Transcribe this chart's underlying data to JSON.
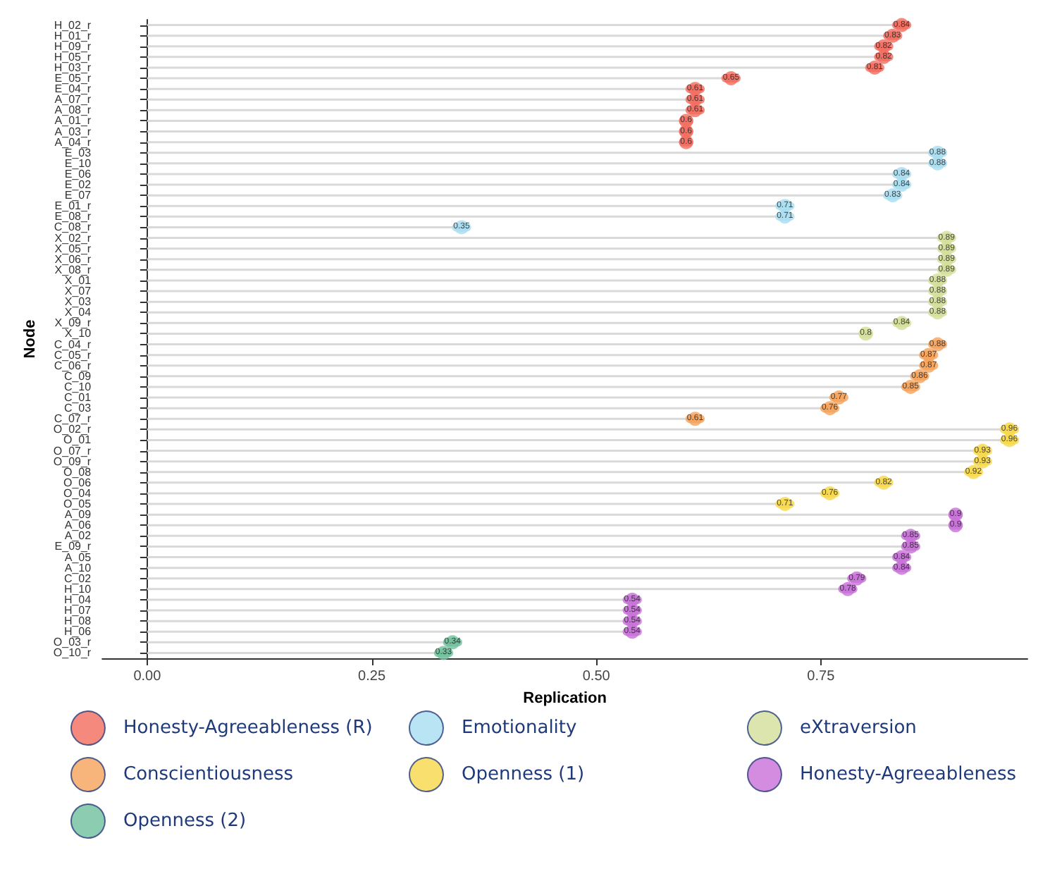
{
  "chart_data": {
    "type": "lollipop",
    "orientation": "horizontal",
    "xlabel": "Replication",
    "ylabel": "Node",
    "categories": [
      "H_02_r",
      "H_01_r",
      "H_09_r",
      "H_05_r",
      "H_03_r",
      "E_05_r",
      "E_04_r",
      "A_07_r",
      "A_08_r",
      "A_01_r",
      "A_03_r",
      "A_04_r",
      "E_03",
      "E_10",
      "E_06",
      "E_02",
      "E_07",
      "E_01_r",
      "E_08_r",
      "C_08_r",
      "X_02_r",
      "X_05_r",
      "X_06_r",
      "X_08_r",
      "X_01",
      "X_07",
      "X_03",
      "X_04",
      "X_09_r",
      "X_10",
      "C_04_r",
      "C_05_r",
      "C_06_r",
      "C_09",
      "C_10",
      "C_01",
      "C_03",
      "C_07_r",
      "O_02_r",
      "O_01",
      "O_07_r",
      "O_09_r",
      "O_08",
      "O_06",
      "O_04",
      "O_05",
      "A_09",
      "A_06",
      "A_02",
      "E_09_r",
      "A_05",
      "A_10",
      "C_02",
      "H_10",
      "H_04",
      "H_07",
      "H_08",
      "H_06",
      "O_03_r",
      "O_10_r"
    ],
    "series": [
      {
        "name": "Honesty-Agreeableness (R)",
        "color": "#f26b5e",
        "values": [
          0.84,
          0.83,
          0.82,
          0.82,
          0.81,
          0.65,
          0.61,
          0.61,
          0.61,
          0.6,
          0.6,
          0.6,
          null,
          null,
          null,
          null,
          null,
          null,
          null,
          null,
          null,
          null,
          null,
          null,
          null,
          null,
          null,
          null,
          null,
          null,
          null,
          null,
          null,
          null,
          null,
          null,
          null,
          null,
          null,
          null,
          null,
          null,
          null,
          null,
          null,
          null,
          null,
          null,
          null,
          null,
          null,
          null,
          null,
          null,
          null,
          null,
          null,
          null,
          null,
          null
        ]
      },
      {
        "name": "Emotionality",
        "color": "#a8ddf0",
        "values": [
          null,
          null,
          null,
          null,
          null,
          null,
          null,
          null,
          null,
          null,
          null,
          null,
          0.88,
          0.88,
          0.84,
          0.84,
          0.83,
          0.71,
          0.71,
          0.35,
          null,
          null,
          null,
          null,
          null,
          null,
          null,
          null,
          null,
          null,
          null,
          null,
          null,
          null,
          null,
          null,
          null,
          null,
          null,
          null,
          null,
          null,
          null,
          null,
          null,
          null,
          null,
          null,
          null,
          null,
          null,
          null,
          null,
          null,
          null,
          null,
          null,
          null,
          null,
          null
        ]
      },
      {
        "name": "eXtraversion",
        "color": "#d3df9a",
        "values": [
          null,
          null,
          null,
          null,
          null,
          null,
          null,
          null,
          null,
          null,
          null,
          null,
          null,
          null,
          null,
          null,
          null,
          null,
          null,
          null,
          0.89,
          0.89,
          0.89,
          0.89,
          0.88,
          0.88,
          0.88,
          0.88,
          0.84,
          0.8,
          null,
          null,
          null,
          null,
          null,
          null,
          null,
          null,
          null,
          null,
          null,
          null,
          null,
          null,
          null,
          null,
          null,
          null,
          null,
          null,
          null,
          null,
          null,
          null,
          null,
          null,
          null,
          null,
          null,
          null
        ]
      },
      {
        "name": "Conscientiousness",
        "color": "#f5a25a",
        "values": [
          null,
          null,
          null,
          null,
          null,
          null,
          null,
          null,
          null,
          null,
          null,
          null,
          null,
          null,
          null,
          null,
          null,
          null,
          null,
          null,
          null,
          null,
          null,
          null,
          null,
          null,
          null,
          null,
          null,
          null,
          0.88,
          0.87,
          0.87,
          0.86,
          0.85,
          0.77,
          0.76,
          0.61,
          null,
          null,
          null,
          null,
          null,
          null,
          null,
          null,
          null,
          null,
          null,
          null,
          null,
          null,
          null,
          null,
          null,
          null,
          null,
          null,
          null,
          null
        ]
      },
      {
        "name": "Openness (1)",
        "color": "#f7d84a",
        "values": [
          null,
          null,
          null,
          null,
          null,
          null,
          null,
          null,
          null,
          null,
          null,
          null,
          null,
          null,
          null,
          null,
          null,
          null,
          null,
          null,
          null,
          null,
          null,
          null,
          null,
          null,
          null,
          null,
          null,
          null,
          null,
          null,
          null,
          null,
          null,
          null,
          null,
          null,
          0.96,
          0.96,
          0.93,
          0.93,
          0.92,
          0.82,
          0.76,
          0.71,
          null,
          null,
          null,
          null,
          null,
          null,
          null,
          null,
          null,
          null,
          null,
          null,
          null,
          null
        ]
      },
      {
        "name": "Honesty-Agreeableness",
        "color": "#c86fd8",
        "values": [
          null,
          null,
          null,
          null,
          null,
          null,
          null,
          null,
          null,
          null,
          null,
          null,
          null,
          null,
          null,
          null,
          null,
          null,
          null,
          null,
          null,
          null,
          null,
          null,
          null,
          null,
          null,
          null,
          null,
          null,
          null,
          null,
          null,
          null,
          null,
          null,
          null,
          null,
          null,
          null,
          null,
          null,
          null,
          null,
          null,
          null,
          0.9,
          0.9,
          0.85,
          0.85,
          0.84,
          0.84,
          0.79,
          0.78,
          0.54,
          0.54,
          0.54,
          0.54,
          null,
          null
        ]
      },
      {
        "name": "Openness (2)",
        "color": "#6fbf9c",
        "values": [
          null,
          null,
          null,
          null,
          null,
          null,
          null,
          null,
          null,
          null,
          null,
          null,
          null,
          null,
          null,
          null,
          null,
          null,
          null,
          null,
          null,
          null,
          null,
          null,
          null,
          null,
          null,
          null,
          null,
          null,
          null,
          null,
          null,
          null,
          null,
          null,
          null,
          null,
          null,
          null,
          null,
          null,
          null,
          null,
          null,
          null,
          null,
          null,
          null,
          null,
          null,
          null,
          null,
          null,
          null,
          null,
          null,
          null,
          0.34,
          0.33
        ]
      }
    ],
    "xlim": [
      -0.05,
      0.98
    ],
    "xticks": [
      {
        "value": 0,
        "label": "0.00"
      },
      {
        "value": 0.25,
        "label": "0.25"
      },
      {
        "value": 0.5,
        "label": "0.50"
      },
      {
        "value": 0.75,
        "label": "0.75"
      }
    ],
    "data_labels": true,
    "legend": "bottom"
  }
}
